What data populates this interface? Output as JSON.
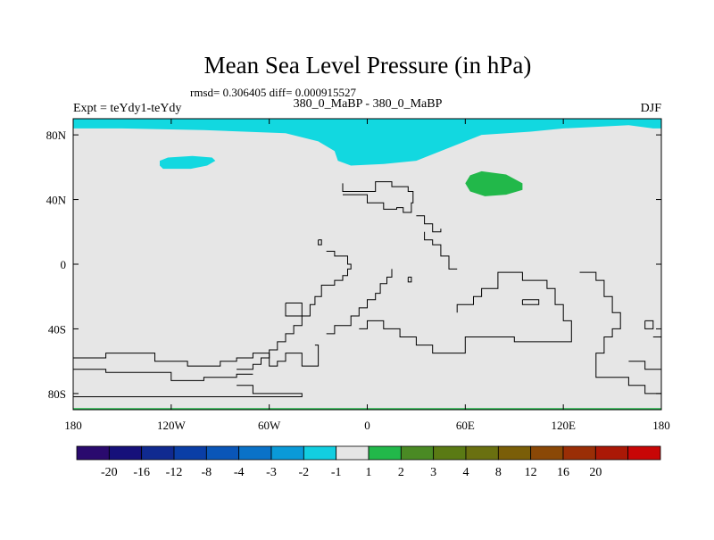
{
  "chart_data": {
    "type": "heatmap",
    "title": "Mean Sea Level Pressure (in hPa)",
    "subtitle": "rmsd= 0.306405 diff= 0.000915527",
    "left_label": "Expt = teYdy1-teYdy",
    "center_label": "380_0_MaBP - 380_0_MaBP",
    "right_label": "DJF",
    "x_ticks": [
      {
        "lon": -180,
        "label": "180"
      },
      {
        "lon": -120,
        "label": "120W"
      },
      {
        "lon": -60,
        "label": "60W"
      },
      {
        "lon": 0,
        "label": "0"
      },
      {
        "lon": 60,
        "label": "60E"
      },
      {
        "lon": 120,
        "label": "120E"
      },
      {
        "lon": 180,
        "label": "180"
      }
    ],
    "y_ticks": [
      {
        "lat": 80,
        "label": "80N"
      },
      {
        "lat": 40,
        "label": "40N"
      },
      {
        "lat": 0,
        "label": "0"
      },
      {
        "lat": -40,
        "label": "40S"
      },
      {
        "lat": -80,
        "label": "80S"
      }
    ],
    "xlim": [
      -180,
      180
    ],
    "ylim": [
      -90,
      90
    ],
    "background_color": "#e6e6e6",
    "colorbar": {
      "colors": [
        "#2a0a6e",
        "#16107a",
        "#102a90",
        "#0a3ea6",
        "#0a56b8",
        "#0a72c8",
        "#0a9ad8",
        "#12cee0",
        "#e6e6e6",
        "#22b84a",
        "#4a8a24",
        "#5a7a14",
        "#6a7010",
        "#7a5e08",
        "#8a4806",
        "#9a2e06",
        "#aa1806",
        "#c80606"
      ],
      "labels": [
        "-20",
        "-16",
        "-12",
        "-8",
        "-4",
        "-3",
        "-2",
        "-1",
        "1",
        "2",
        "3",
        "4",
        "8",
        "12",
        "16",
        "20"
      ]
    },
    "shaded_regions": [
      {
        "name": "arctic-cyan-band",
        "color": "#12d8e0",
        "level": "-2 to -1",
        "points": [
          [
            -180,
            90
          ],
          [
            180,
            90
          ],
          [
            180,
            84
          ],
          [
            175,
            84
          ],
          [
            160,
            86
          ],
          [
            140,
            85
          ],
          [
            120,
            84
          ],
          [
            100,
            82
          ],
          [
            70,
            80
          ],
          [
            50,
            72
          ],
          [
            30,
            64
          ],
          [
            10,
            62
          ],
          [
            -10,
            61
          ],
          [
            -18,
            64
          ],
          [
            -20,
            70
          ],
          [
            -30,
            76
          ],
          [
            -50,
            81
          ],
          [
            -100,
            83
          ],
          [
            -150,
            84
          ],
          [
            -180,
            84
          ]
        ]
      },
      {
        "name": "cyan-patch-north-pacific",
        "color": "#12d8e0",
        "level": "-2 to -1",
        "points": [
          [
            -127,
            64
          ],
          [
            -122,
            66
          ],
          [
            -107,
            67
          ],
          [
            -95,
            66
          ],
          [
            -93,
            64
          ],
          [
            -98,
            61
          ],
          [
            -108,
            59
          ],
          [
            -125,
            59
          ],
          [
            -127,
            61
          ]
        ]
      },
      {
        "name": "green-patch-central-asia",
        "color": "#22b84a",
        "level": "1 to 2",
        "points": [
          [
            63,
            55
          ],
          [
            70,
            57.5
          ],
          [
            85,
            55.5
          ],
          [
            95,
            50
          ],
          [
            95,
            46
          ],
          [
            85,
            43
          ],
          [
            72,
            42
          ],
          [
            63,
            45
          ],
          [
            60,
            50
          ]
        ]
      },
      {
        "name": "green-southern-band",
        "color": "#22b84a",
        "level": "1 to 2",
        "points": [
          [
            -180,
            -89
          ],
          [
            180,
            -89
          ],
          [
            180,
            -90
          ],
          [
            -180,
            -90
          ]
        ]
      }
    ],
    "contour_lines": [
      {
        "name": "north-africa-outline",
        "points": [
          [
            -15,
            50
          ],
          [
            -15,
            45
          ],
          [
            5,
            45
          ],
          [
            5,
            51
          ],
          [
            15,
            51
          ],
          [
            15,
            48
          ],
          [
            25,
            48
          ],
          [
            25,
            45
          ],
          [
            28,
            45
          ],
          [
            28,
            38
          ],
          [
            27,
            38
          ],
          [
            27,
            32
          ],
          [
            22,
            32
          ],
          [
            22,
            35
          ],
          [
            18,
            35
          ],
          [
            18,
            34
          ],
          [
            10,
            34
          ],
          [
            10,
            38
          ],
          [
            0,
            38
          ],
          [
            0,
            43
          ],
          [
            -15,
            43
          ]
        ]
      },
      {
        "name": "ne-africa-outline",
        "points": [
          [
            35,
            20
          ],
          [
            35,
            15
          ],
          [
            40,
            15
          ],
          [
            40,
            12
          ],
          [
            45,
            12
          ],
          [
            45,
            5
          ],
          [
            50,
            5
          ],
          [
            50,
            -3
          ],
          [
            55,
            -3
          ]
        ]
      },
      {
        "name": "west-africa-outline",
        "points": [
          [
            -25,
            8
          ],
          [
            -20,
            8
          ],
          [
            -20,
            5
          ],
          [
            -12,
            5
          ],
          [
            -12,
            0
          ],
          [
            -10,
            0
          ],
          [
            -10,
            -3
          ],
          [
            -12,
            -3
          ],
          [
            -12,
            -7
          ],
          [
            -15,
            -7
          ],
          [
            -15,
            -10
          ],
          [
            -20,
            -10
          ],
          [
            -20,
            -13
          ],
          [
            -28,
            -13
          ],
          [
            -28,
            -20
          ],
          [
            -32,
            -20
          ],
          [
            -32,
            -25
          ],
          [
            -35,
            -25
          ],
          [
            -35,
            -32
          ],
          [
            -40,
            -32
          ],
          [
            -40,
            -38
          ],
          [
            -45,
            -38
          ],
          [
            -45,
            -43
          ],
          [
            -50,
            -43
          ],
          [
            -50,
            -48
          ],
          [
            -55,
            -48
          ],
          [
            -55,
            -53
          ],
          [
            -60,
            -53
          ],
          [
            -60,
            -58
          ],
          [
            -65,
            -58
          ],
          [
            -65,
            -62
          ],
          [
            -70,
            -62
          ],
          [
            -70,
            -65
          ],
          [
            -80,
            -65
          ]
        ]
      },
      {
        "name": "south-africa-outline",
        "points": [
          [
            15,
            -3
          ],
          [
            15,
            -8
          ],
          [
            12,
            -8
          ],
          [
            12,
            -12
          ],
          [
            8,
            -12
          ],
          [
            8,
            -18
          ],
          [
            5,
            -18
          ],
          [
            5,
            -22
          ],
          [
            0,
            -22
          ],
          [
            0,
            -27
          ],
          [
            -5,
            -27
          ],
          [
            -5,
            -32
          ],
          [
            -10,
            -32
          ],
          [
            -10,
            -38
          ],
          [
            -20,
            -38
          ],
          [
            -20,
            -43
          ],
          [
            -25,
            -43
          ]
        ]
      },
      {
        "name": "central-south-outline",
        "points": [
          [
            -5,
            -40
          ],
          [
            0,
            -40
          ],
          [
            0,
            -35
          ],
          [
            10,
            -35
          ],
          [
            10,
            -40
          ],
          [
            20,
            -40
          ],
          [
            20,
            -45
          ],
          [
            30,
            -45
          ],
          [
            30,
            -50
          ],
          [
            40,
            -50
          ],
          [
            40,
            -55
          ],
          [
            60,
            -55
          ],
          [
            60,
            -45
          ],
          [
            90,
            -45
          ],
          [
            90,
            -48
          ],
          [
            125,
            -48
          ],
          [
            125,
            -35
          ],
          [
            120,
            -35
          ],
          [
            120,
            -25
          ],
          [
            115,
            -25
          ],
          [
            115,
            -15
          ],
          [
            110,
            -15
          ],
          [
            110,
            -10
          ],
          [
            95,
            -10
          ],
          [
            95,
            -5
          ],
          [
            80,
            -5
          ],
          [
            80,
            -15
          ],
          [
            70,
            -15
          ],
          [
            70,
            -20
          ],
          [
            65,
            -20
          ],
          [
            65,
            -25
          ],
          [
            55,
            -25
          ],
          [
            55,
            -30
          ]
        ]
      },
      {
        "name": "small-nw-outline",
        "points": [
          [
            -50,
            -24
          ],
          [
            -40,
            -24
          ],
          [
            -40,
            -32
          ],
          [
            -50,
            -32
          ],
          [
            -50,
            -24
          ]
        ]
      },
      {
        "name": "west-antarctic-outline",
        "points": [
          [
            -32,
            -50
          ],
          [
            -30,
            -50
          ],
          [
            -30,
            -63
          ],
          [
            -40,
            -63
          ],
          [
            -40,
            -55
          ],
          [
            -50,
            -55
          ],
          [
            -50,
            -60
          ],
          [
            -55,
            -60
          ],
          [
            -55,
            -63
          ],
          [
            -60,
            -63
          ],
          [
            -60,
            -55
          ],
          [
            -70,
            -55
          ],
          [
            -70,
            -58
          ],
          [
            -80,
            -58
          ],
          [
            -80,
            -60
          ],
          [
            -90,
            -60
          ],
          [
            -90,
            -63
          ],
          [
            -110,
            -63
          ],
          [
            -110,
            -60
          ],
          [
            -130,
            -60
          ],
          [
            -130,
            -55
          ],
          [
            -160,
            -55
          ],
          [
            -160,
            -58
          ],
          [
            -180,
            -58
          ]
        ]
      },
      {
        "name": "mid-south-outline",
        "points": [
          [
            -180,
            -65
          ],
          [
            -160,
            -65
          ],
          [
            -160,
            -67
          ],
          [
            -120,
            -67
          ],
          [
            -120,
            -72
          ],
          [
            -100,
            -72
          ],
          [
            -100,
            -70
          ],
          [
            -80,
            -70
          ],
          [
            -80,
            -68
          ],
          [
            -70,
            -68
          ]
        ]
      },
      {
        "name": "ant-inner-outline",
        "points": [
          [
            -80,
            -75
          ],
          [
            -70,
            -75
          ],
          [
            -70,
            -80
          ],
          [
            -40,
            -80
          ],
          [
            -40,
            -82
          ],
          [
            -180,
            -82
          ]
        ]
      },
      {
        "name": "east-outline",
        "points": [
          [
            130,
            -5
          ],
          [
            140,
            -5
          ],
          [
            140,
            -10
          ],
          [
            145,
            -10
          ],
          [
            145,
            -20
          ],
          [
            150,
            -20
          ],
          [
            150,
            -30
          ],
          [
            155,
            -30
          ],
          [
            155,
            -40
          ],
          [
            150,
            -40
          ],
          [
            150,
            -45
          ],
          [
            145,
            -45
          ],
          [
            145,
            -55
          ],
          [
            140,
            -55
          ],
          [
            140,
            -70
          ],
          [
            160,
            -70
          ],
          [
            160,
            -75
          ],
          [
            170,
            -75
          ],
          [
            170,
            -80
          ],
          [
            180,
            -80
          ]
        ]
      },
      {
        "name": "far-east-outline",
        "points": [
          [
            175,
            -45
          ],
          [
            180,
            -45
          ]
        ]
      },
      {
        "name": "east-inner-outline",
        "points": [
          [
            160,
            -60
          ],
          [
            170,
            -60
          ],
          [
            170,
            -65
          ],
          [
            180,
            -65
          ]
        ]
      },
      {
        "name": "far-east-small-outline",
        "points": [
          [
            170,
            -35
          ],
          [
            175,
            -35
          ],
          [
            175,
            -40
          ],
          [
            170,
            -40
          ],
          [
            170,
            -35
          ]
        ]
      },
      {
        "name": "south-east-loop",
        "points": [
          [
            95,
            -22
          ],
          [
            95,
            -25
          ],
          [
            105,
            -25
          ],
          [
            105,
            -22
          ],
          [
            95,
            -22
          ]
        ]
      },
      {
        "name": "small-central-outline",
        "points": [
          [
            30,
            30
          ],
          [
            35,
            30
          ],
          [
            35,
            25
          ],
          [
            40,
            25
          ],
          [
            40,
            20
          ],
          [
            45,
            20
          ],
          [
            45,
            22
          ]
        ]
      },
      {
        "name": "tiny-square",
        "points": [
          [
            -30,
            15
          ],
          [
            -28,
            15
          ],
          [
            -28,
            12
          ],
          [
            -30,
            12
          ],
          [
            -30,
            15
          ]
        ]
      },
      {
        "name": "tiny-square-2",
        "points": [
          [
            25,
            -8
          ],
          [
            27,
            -8
          ],
          [
            27,
            -11
          ],
          [
            25,
            -11
          ],
          [
            25,
            -8
          ]
        ]
      }
    ]
  }
}
